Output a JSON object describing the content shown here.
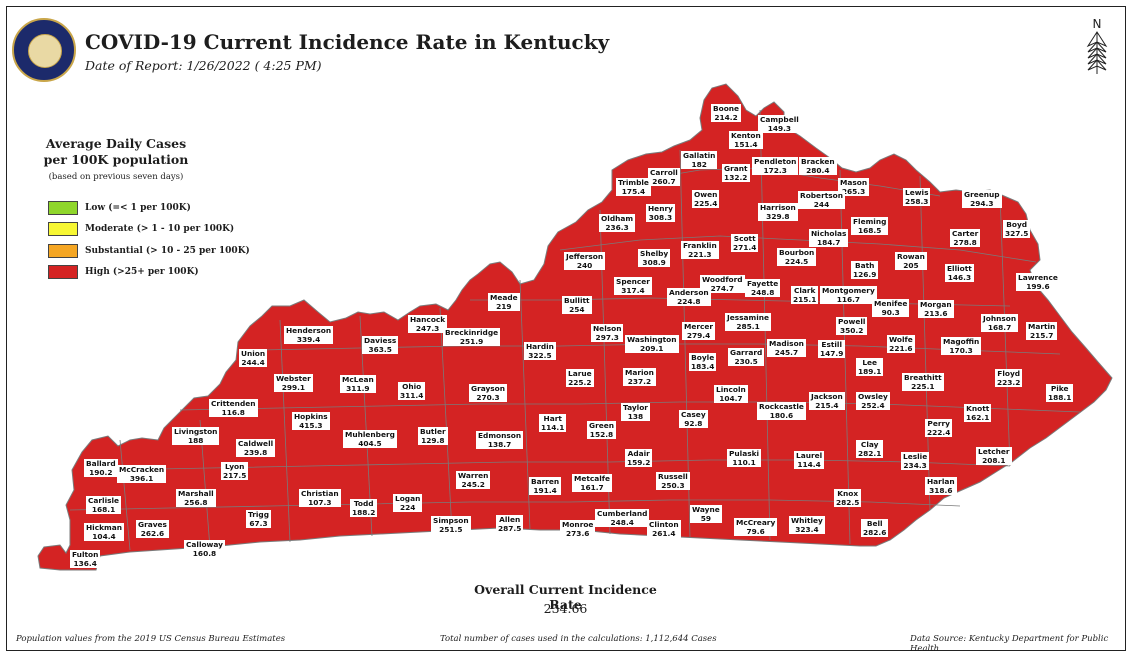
{
  "header": {
    "title": "COVID-19 Current Incidence Rate in Kentucky",
    "date": "Date of Report: 1/26/2022 ( 4:25 PM)"
  },
  "legend": {
    "title_line1": "Average Daily Cases",
    "title_line2": "per 100K population",
    "note": "(based on previous seven days)",
    "items": [
      {
        "label": "Low (=< 1 per 100K)",
        "color": "#8fd62b"
      },
      {
        "label": "Moderate (> 1 - 10 per 100K)",
        "color": "#f7f733"
      },
      {
        "label": "Substantial (> 10 - 25 per 100K)",
        "color": "#f5a623"
      },
      {
        "label": "High (>25+ per 100K)",
        "color": "#d42323"
      }
    ]
  },
  "compass": {
    "letter": "N",
    "icon": "north-arrow-icon"
  },
  "map_colors": {
    "fill": "#d42323",
    "border": "#7a7a7a"
  },
  "counties": [
    {
      "name": "Boone",
      "value": "214.2"
    },
    {
      "name": "Campbell",
      "value": "149.3"
    },
    {
      "name": "Kenton",
      "value": "151.4"
    },
    {
      "name": "Gallatin",
      "value": "182"
    },
    {
      "name": "Carroll",
      "value": "260.7"
    },
    {
      "name": "Trimble",
      "value": "175.4"
    },
    {
      "name": "Grant",
      "value": "132.2"
    },
    {
      "name": "Pendleton",
      "value": "172.3"
    },
    {
      "name": "Bracken",
      "value": "280.4"
    },
    {
      "name": "Mason",
      "value": "265.3"
    },
    {
      "name": "Robertson",
      "value": "244"
    },
    {
      "name": "Owen",
      "value": "225.4"
    },
    {
      "name": "Henry",
      "value": "308.3"
    },
    {
      "name": "Oldham",
      "value": "236.3"
    },
    {
      "name": "Harrison",
      "value": "329.8"
    },
    {
      "name": "Lewis",
      "value": "258.3"
    },
    {
      "name": "Greenup",
      "value": "294.3"
    },
    {
      "name": "Fleming",
      "value": "168.5"
    },
    {
      "name": "Boyd",
      "value": "327.5"
    },
    {
      "name": "Carter",
      "value": "278.8"
    },
    {
      "name": "Scott",
      "value": "271.4"
    },
    {
      "name": "Nicholas",
      "value": "184.7"
    },
    {
      "name": "Franklin",
      "value": "221.3"
    },
    {
      "name": "Shelby",
      "value": "308.9"
    },
    {
      "name": "Jefferson",
      "value": "240"
    },
    {
      "name": "Bourbon",
      "value": "224.5"
    },
    {
      "name": "Rowan",
      "value": "205"
    },
    {
      "name": "Bath",
      "value": "126.9"
    },
    {
      "name": "Elliott",
      "value": "146.3"
    },
    {
      "name": "Lawrence",
      "value": "199.6"
    },
    {
      "name": "Woodford",
      "value": "274.7"
    },
    {
      "name": "Fayette",
      "value": "248.8"
    },
    {
      "name": "Spencer",
      "value": "317.4"
    },
    {
      "name": "Anderson",
      "value": "224.8"
    },
    {
      "name": "Clark",
      "value": "215.1"
    },
    {
      "name": "Montgomery",
      "value": "116.7"
    },
    {
      "name": "Meade",
      "value": "219"
    },
    {
      "name": "Bullitt",
      "value": "254"
    },
    {
      "name": "Hancock",
      "value": "247.3"
    },
    {
      "name": "Menifee",
      "value": "90.3"
    },
    {
      "name": "Morgan",
      "value": "213.6"
    },
    {
      "name": "Johnson",
      "value": "168.7"
    },
    {
      "name": "Martin",
      "value": "215.7"
    },
    {
      "name": "Jessamine",
      "value": "285.1"
    },
    {
      "name": "Powell",
      "value": "350.2"
    },
    {
      "name": "Henderson",
      "value": "339.4"
    },
    {
      "name": "Breckinridge",
      "value": "251.9"
    },
    {
      "name": "Nelson",
      "value": "297.3"
    },
    {
      "name": "Mercer",
      "value": "279.4"
    },
    {
      "name": "Washington",
      "value": "209.1"
    },
    {
      "name": "Daviess",
      "value": "363.5"
    },
    {
      "name": "Hardin",
      "value": "322.5"
    },
    {
      "name": "Union",
      "value": "244.4"
    },
    {
      "name": "Garrard",
      "value": "230.5"
    },
    {
      "name": "Madison",
      "value": "245.7"
    },
    {
      "name": "Estill",
      "value": "147.9"
    },
    {
      "name": "Wolfe",
      "value": "221.6"
    },
    {
      "name": "Magoffin",
      "value": "170.3"
    },
    {
      "name": "Boyle",
      "value": "183.4"
    },
    {
      "name": "Floyd",
      "value": "223.2"
    },
    {
      "name": "Larue",
      "value": "225.2"
    },
    {
      "name": "Marion",
      "value": "237.2"
    },
    {
      "name": "Lee",
      "value": "189.1"
    },
    {
      "name": "Webster",
      "value": "299.1"
    },
    {
      "name": "McLean",
      "value": "311.9"
    },
    {
      "name": "Breathitt",
      "value": "225.1"
    },
    {
      "name": "Grayson",
      "value": "270.3"
    },
    {
      "name": "Ohio",
      "value": "311.4"
    },
    {
      "name": "Lincoln",
      "value": "104.7"
    },
    {
      "name": "Pike",
      "value": "188.1"
    },
    {
      "name": "Crittenden",
      "value": "116.8"
    },
    {
      "name": "Jackson",
      "value": "215.4"
    },
    {
      "name": "Owsley",
      "value": "252.4"
    },
    {
      "name": "Rockcastle",
      "value": "180.6"
    },
    {
      "name": "Taylor",
      "value": "138"
    },
    {
      "name": "Hopkins",
      "value": "415.3"
    },
    {
      "name": "Knott",
      "value": "162.1"
    },
    {
      "name": "Casey",
      "value": "92.8"
    },
    {
      "name": "Perry",
      "value": "222.4"
    },
    {
      "name": "Hart",
      "value": "114.1"
    },
    {
      "name": "Green",
      "value": "152.8"
    },
    {
      "name": "Livingston",
      "value": "188"
    },
    {
      "name": "Butler",
      "value": "129.8"
    },
    {
      "name": "Muhlenberg",
      "value": "404.5"
    },
    {
      "name": "Edmonson",
      "value": "138.7"
    },
    {
      "name": "Caldwell",
      "value": "239.8"
    },
    {
      "name": "Clay",
      "value": "282.1"
    },
    {
      "name": "Letcher",
      "value": "208.1"
    },
    {
      "name": "Ballard",
      "value": "190.2"
    },
    {
      "name": "Leslie",
      "value": "234.3"
    },
    {
      "name": "Adair",
      "value": "159.2"
    },
    {
      "name": "Pulaski",
      "value": "110.1"
    },
    {
      "name": "Laurel",
      "value": "114.4"
    },
    {
      "name": "McCracken",
      "value": "396.1"
    },
    {
      "name": "Lyon",
      "value": "217.5"
    },
    {
      "name": "Warren",
      "value": "245.2"
    },
    {
      "name": "Barren",
      "value": "191.4"
    },
    {
      "name": "Metcalfe",
      "value": "161.7"
    },
    {
      "name": "Russell",
      "value": "250.3"
    },
    {
      "name": "Harlan",
      "value": "318.6"
    },
    {
      "name": "Christian",
      "value": "107.3"
    },
    {
      "name": "Knox",
      "value": "282.5"
    },
    {
      "name": "Marshall",
      "value": "256.8"
    },
    {
      "name": "Carlisle",
      "value": "168.1"
    },
    {
      "name": "Logan",
      "value": "224"
    },
    {
      "name": "Todd",
      "value": "188.2"
    },
    {
      "name": "Trigg",
      "value": "67.3"
    },
    {
      "name": "Wayne",
      "value": "59"
    },
    {
      "name": "Cumberland",
      "value": "248.4"
    },
    {
      "name": "Allen",
      "value": "287.5"
    },
    {
      "name": "Simpson",
      "value": "251.5"
    },
    {
      "name": "Monroe",
      "value": "273.6"
    },
    {
      "name": "Clinton",
      "value": "261.4"
    },
    {
      "name": "McCreary",
      "value": "79.6"
    },
    {
      "name": "Whitley",
      "value": "323.4"
    },
    {
      "name": "Bell",
      "value": "282.6"
    },
    {
      "name": "Graves",
      "value": "262.6"
    },
    {
      "name": "Hickman",
      "value": "104.4"
    },
    {
      "name": "Calloway",
      "value": "160.8"
    },
    {
      "name": "Fulton",
      "value": "136.4"
    }
  ],
  "overall": {
    "label": "Overall Current Incidence Rate",
    "value": "234.66"
  },
  "footer": {
    "left": "Population values from the 2019 US Census Bureau Estimates",
    "center": "Total number of cases used in the calculations: 1,112,644 Cases",
    "right": "Data Source: Kentucky Department for Public Health"
  }
}
